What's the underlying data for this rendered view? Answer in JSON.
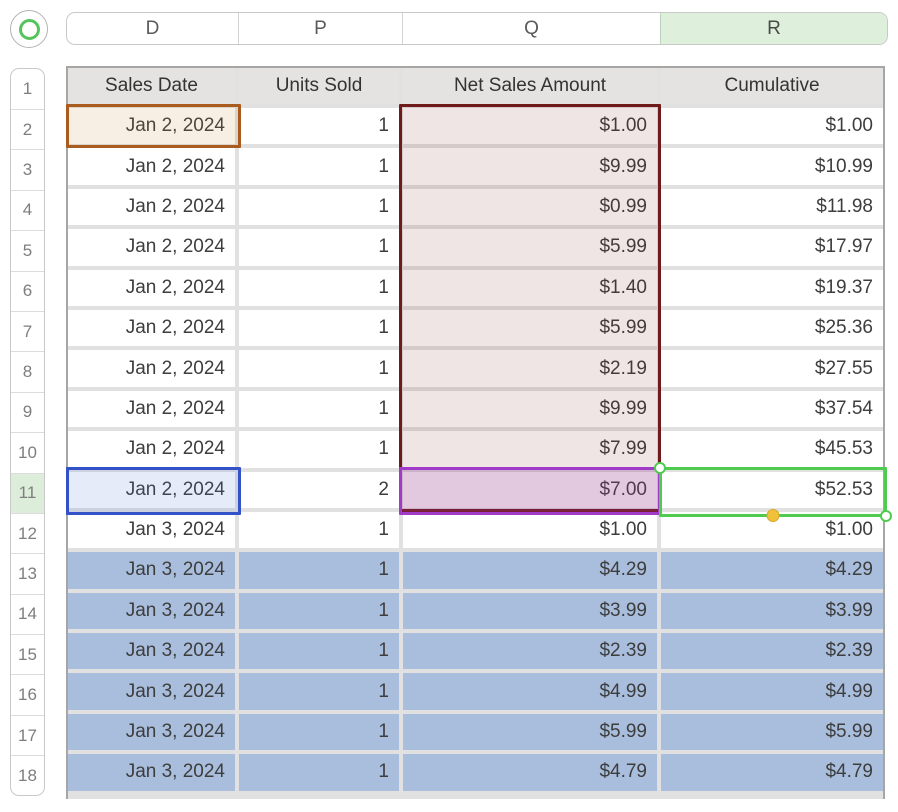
{
  "app": {
    "name": "Numbers spreadsheet"
  },
  "columns": {
    "letters": [
      {
        "label": "D",
        "selected": false
      },
      {
        "label": "P",
        "selected": false
      },
      {
        "label": "Q",
        "selected": false
      },
      {
        "label": "R",
        "selected": true
      }
    ]
  },
  "row_numbers": {
    "labels": [
      "1",
      "2",
      "3",
      "4",
      "5",
      "6",
      "7",
      "8",
      "9",
      "10",
      "11",
      "12",
      "13",
      "14",
      "15",
      "16",
      "17",
      "18"
    ],
    "selected": "11"
  },
  "table": {
    "headers": [
      "Sales Date",
      "Units Sold",
      "Net Sales Amount",
      "Cumulative"
    ],
    "rows": [
      {
        "row": 2,
        "date": "Jan 2, 2024",
        "units": "1",
        "net": "$1.00",
        "cumulative": "$1.00",
        "fill": "none"
      },
      {
        "row": 3,
        "date": "Jan 2, 2024",
        "units": "1",
        "net": "$9.99",
        "cumulative": "$10.99",
        "fill": "none"
      },
      {
        "row": 4,
        "date": "Jan 2, 2024",
        "units": "1",
        "net": "$0.99",
        "cumulative": "$11.98",
        "fill": "none"
      },
      {
        "row": 5,
        "date": "Jan 2, 2024",
        "units": "1",
        "net": "$5.99",
        "cumulative": "$17.97",
        "fill": "none"
      },
      {
        "row": 6,
        "date": "Jan 2, 2024",
        "units": "1",
        "net": "$1.40",
        "cumulative": "$19.37",
        "fill": "none"
      },
      {
        "row": 7,
        "date": "Jan 2, 2024",
        "units": "1",
        "net": "$5.99",
        "cumulative": "$25.36",
        "fill": "none"
      },
      {
        "row": 8,
        "date": "Jan 2, 2024",
        "units": "1",
        "net": "$2.19",
        "cumulative": "$27.55",
        "fill": "none"
      },
      {
        "row": 9,
        "date": "Jan 2, 2024",
        "units": "1",
        "net": "$9.99",
        "cumulative": "$37.54",
        "fill": "none"
      },
      {
        "row": 10,
        "date": "Jan 2, 2024",
        "units": "1",
        "net": "$7.99",
        "cumulative": "$45.53",
        "fill": "none"
      },
      {
        "row": 11,
        "date": "Jan 2, 2024",
        "units": "2",
        "net": "$7.00",
        "cumulative": "$52.53",
        "fill": "none"
      },
      {
        "row": 12,
        "date": "Jan 3, 2024",
        "units": "1",
        "net": "$1.00",
        "cumulative": "$1.00",
        "fill": "none"
      },
      {
        "row": 13,
        "date": "Jan 3, 2024",
        "units": "1",
        "net": "$4.29",
        "cumulative": "$4.29",
        "fill": "blue"
      },
      {
        "row": 14,
        "date": "Jan 3, 2024",
        "units": "1",
        "net": "$3.99",
        "cumulative": "$3.99",
        "fill": "blue"
      },
      {
        "row": 15,
        "date": "Jan 3, 2024",
        "units": "1",
        "net": "$2.39",
        "cumulative": "$2.39",
        "fill": "blue"
      },
      {
        "row": 16,
        "date": "Jan 3, 2024",
        "units": "1",
        "net": "$4.99",
        "cumulative": "$4.99",
        "fill": "blue"
      },
      {
        "row": 17,
        "date": "Jan 3, 2024",
        "units": "1",
        "net": "$5.99",
        "cumulative": "$5.99",
        "fill": "blue"
      },
      {
        "row": 18,
        "date": "Jan 3, 2024",
        "units": "1",
        "net": "$4.79",
        "cumulative": "$4.79",
        "fill": "blue"
      }
    ]
  },
  "annotations": {
    "orange_cell": {
      "ref": "D2",
      "border": "#aa5c1f"
    },
    "red_range": {
      "ref": "Q2:Q11",
      "border": "#701b1b"
    },
    "blue_cell": {
      "ref": "D11",
      "border": "#3352c7"
    },
    "purple_cell": {
      "ref": "Q11",
      "border": "#a23ac9"
    },
    "selection": {
      "ref": "R11",
      "border": "#4fcc50",
      "handle_fill": "#ffffff",
      "fill_handle": "#f0c23c"
    },
    "blue_rows_fill": "#a9bedd",
    "selected_column_header_fill": "#def0db",
    "selected_row_number_fill": "#dcedd9"
  }
}
